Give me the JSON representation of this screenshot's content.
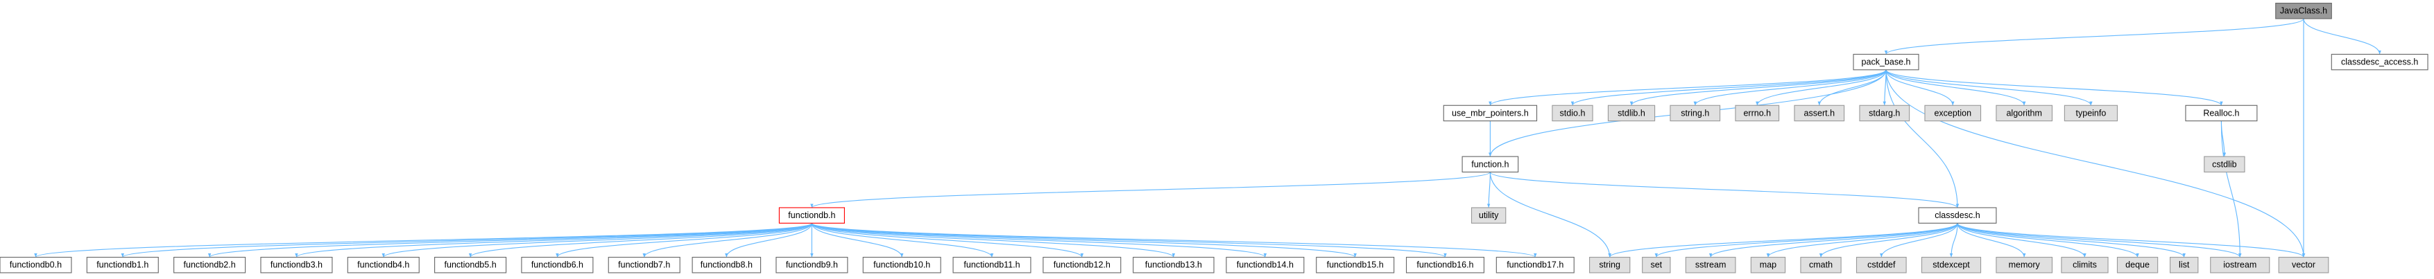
{
  "nodes": [
    "JavaClass.h",
    "pack_base.h",
    "classdesc_access.h",
    "use_mbr_pointers.h",
    "stdio.h",
    "stdlib.h",
    "string.h",
    "errno.h",
    "assert.h",
    "stdarg.h",
    "exception",
    "algorithm",
    "typeinfo",
    "Realloc.h",
    "function.h",
    "cstdlib",
    "functiondb.h",
    "utility",
    "classdesc.h",
    "functiondb0.h",
    "functiondb1.h",
    "functiondb2.h",
    "functiondb3.h",
    "functiondb4.h",
    "functiondb5.h",
    "functiondb6.h",
    "functiondb7.h",
    "functiondb8.h",
    "functiondb9.h",
    "functiondb10.h",
    "functiondb11.h",
    "functiondb12.h",
    "functiondb13.h",
    "functiondb14.h",
    "functiondb15.h",
    "functiondb16.h",
    "functiondb17.h",
    "string",
    "set",
    "sstream",
    "map",
    "cmath",
    "cstddef",
    "stdexcept",
    "memory",
    "climits",
    "deque",
    "list",
    "iostream",
    "vector"
  ]
}
